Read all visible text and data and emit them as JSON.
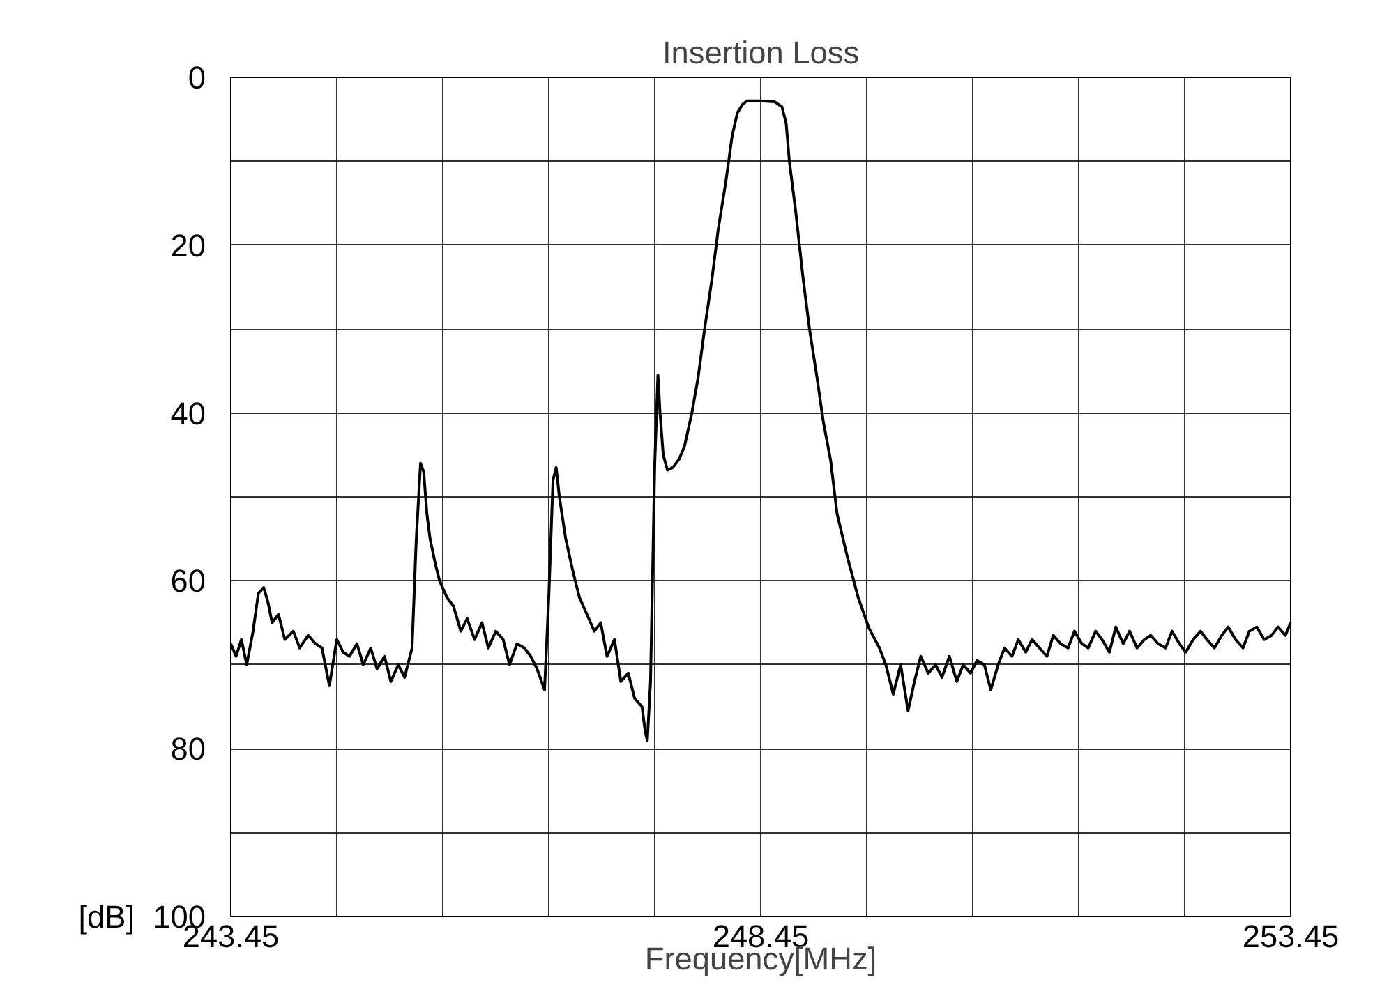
{
  "chart_data": {
    "type": "line",
    "title": "Insertion Loss",
    "xlabel": "Frequency[MHz]",
    "ylabel": "[dB]",
    "x": [
      243.45,
      243.5,
      243.55,
      243.6,
      243.66,
      243.71,
      243.76,
      243.8,
      243.84,
      243.9,
      243.96,
      244.04,
      244.1,
      244.18,
      244.25,
      244.31,
      244.38,
      244.45,
      244.51,
      244.57,
      244.64,
      244.7,
      244.77,
      244.83,
      244.9,
      244.96,
      245.03,
      245.09,
      245.16,
      245.2,
      245.24,
      245.27,
      245.3,
      245.33,
      245.38,
      245.42,
      245.49,
      245.55,
      245.62,
      245.68,
      245.75,
      245.82,
      245.88,
      245.95,
      246.02,
      246.08,
      246.15,
      246.22,
      246.28,
      246.34,
      246.41,
      246.45,
      246.49,
      246.52,
      246.55,
      246.61,
      246.68,
      246.74,
      246.81,
      246.88,
      246.94,
      247.0,
      247.07,
      247.13,
      247.2,
      247.26,
      247.33,
      247.36,
      247.38,
      247.41,
      247.45,
      247.48,
      247.5,
      247.53,
      247.57,
      247.62,
      247.68,
      247.73,
      247.8,
      247.86,
      247.92,
      247.99,
      248.05,
      248.12,
      248.18,
      248.23,
      248.28,
      248.32,
      248.45,
      248.58,
      248.65,
      248.69,
      248.72,
      248.78,
      248.85,
      248.91,
      248.98,
      249.04,
      249.11,
      249.17,
      249.27,
      249.37,
      249.47,
      249.57,
      249.63,
      249.7,
      249.77,
      249.84,
      249.9,
      249.96,
      250.03,
      250.1,
      250.16,
      250.23,
      250.3,
      250.36,
      250.43,
      250.49,
      250.56,
      250.62,
      250.69,
      250.75,
      250.82,
      250.88,
      250.95,
      251.01,
      251.08,
      251.15,
      251.21,
      251.28,
      251.35,
      251.41,
      251.48,
      251.54,
      251.61,
      251.67,
      251.74,
      251.8,
      251.87,
      251.93,
      252.0,
      252.07,
      252.13,
      252.2,
      252.27,
      252.33,
      252.4,
      252.46,
      252.53,
      252.6,
      252.66,
      252.73,
      252.8,
      252.86,
      252.93,
      253.0,
      253.06,
      253.13,
      253.2,
      253.27,
      253.33,
      253.4,
      253.45
    ],
    "values": [
      67.5,
      69,
      67,
      70,
      66,
      61.5,
      60.8,
      62.5,
      65,
      64,
      67,
      66,
      68,
      66.5,
      67.5,
      68,
      72.5,
      67,
      68.5,
      69,
      67.5,
      70,
      68,
      70.5,
      69,
      72,
      70,
      71.5,
      68,
      55,
      46,
      47,
      52,
      55,
      58,
      60,
      62,
      63,
      66,
      64.5,
      67,
      65,
      68,
      66,
      67,
      70,
      67.5,
      68,
      69,
      70.5,
      73,
      62,
      48,
      46.5,
      50,
      55,
      59,
      62,
      64,
      66,
      65,
      69,
      67,
      72,
      71,
      74,
      75,
      78,
      79,
      72,
      46,
      35.5,
      40,
      45,
      46.8,
      46.5,
      45.5,
      44,
      40,
      35.7,
      30,
      24,
      18,
      12.5,
      7,
      4.2,
      3.2,
      2.8,
      2.8,
      2.9,
      3.5,
      5.5,
      10,
      16,
      24,
      30,
      35.7,
      41,
      45.7,
      52,
      57.3,
      62,
      65.6,
      68,
      70,
      73.5,
      70,
      75.5,
      72,
      69,
      71,
      70,
      71.5,
      69,
      72,
      70,
      71,
      69.5,
      70,
      73,
      70,
      68,
      69,
      67,
      68.5,
      67,
      68,
      69,
      66.5,
      67.5,
      68,
      66,
      67.5,
      68,
      66,
      67,
      68.5,
      65.5,
      67.5,
      66,
      68,
      67,
      66.5,
      67.5,
      68,
      66,
      67.5,
      68.5,
      67,
      66,
      67,
      68,
      66.5,
      65.5,
      67,
      68,
      66,
      65.5,
      67,
      66.5,
      65.5,
      66.5,
      65
    ],
    "color": "#000000",
    "line_style": "solid",
    "marker": "none",
    "xlim": [
      243.45,
      253.45
    ],
    "xticks": [
      {
        "value": 243.45,
        "label": "243.45"
      },
      {
        "value": 244.45,
        "label": null
      },
      {
        "value": 245.45,
        "label": null
      },
      {
        "value": 246.45,
        "label": null
      },
      {
        "value": 247.45,
        "label": null
      },
      {
        "value": 248.45,
        "label": "248.45"
      },
      {
        "value": 249.45,
        "label": null
      },
      {
        "value": 250.45,
        "label": null
      },
      {
        "value": 251.45,
        "label": null
      },
      {
        "value": 252.45,
        "label": null
      },
      {
        "value": 253.45,
        "label": "253.45"
      }
    ],
    "ylim": [
      100,
      0
    ],
    "yticks": [
      0,
      {
        "value": 10,
        "label": null
      },
      20,
      {
        "value": 30,
        "label": null
      },
      40,
      {
        "value": 50,
        "label": null
      },
      60,
      {
        "value": 70,
        "label": null
      },
      80,
      {
        "value": 90,
        "label": null
      },
      100
    ],
    "grid": true
  }
}
